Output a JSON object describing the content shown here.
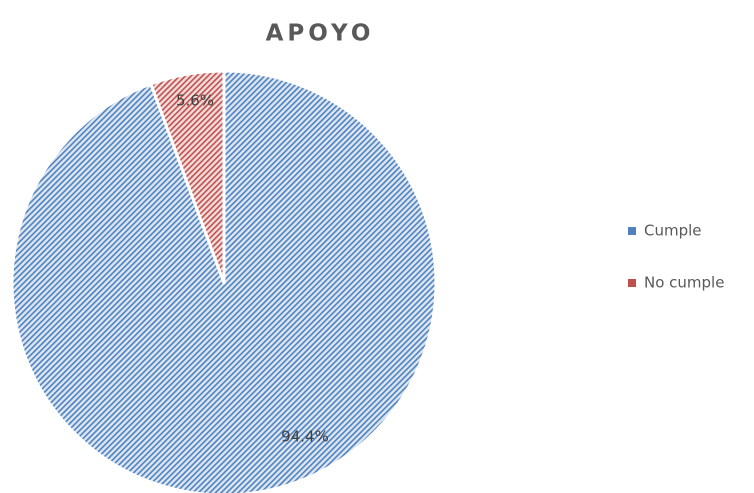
{
  "chart_data": {
    "type": "pie",
    "title": "APOYO",
    "categories": [
      "Cumple",
      "No cumple"
    ],
    "values": [
      94.4,
      5.6
    ],
    "value_labels": [
      "94.4%",
      "5.6%"
    ],
    "colors": [
      "#4f81bd",
      "#c0504d"
    ],
    "legend": "right"
  }
}
